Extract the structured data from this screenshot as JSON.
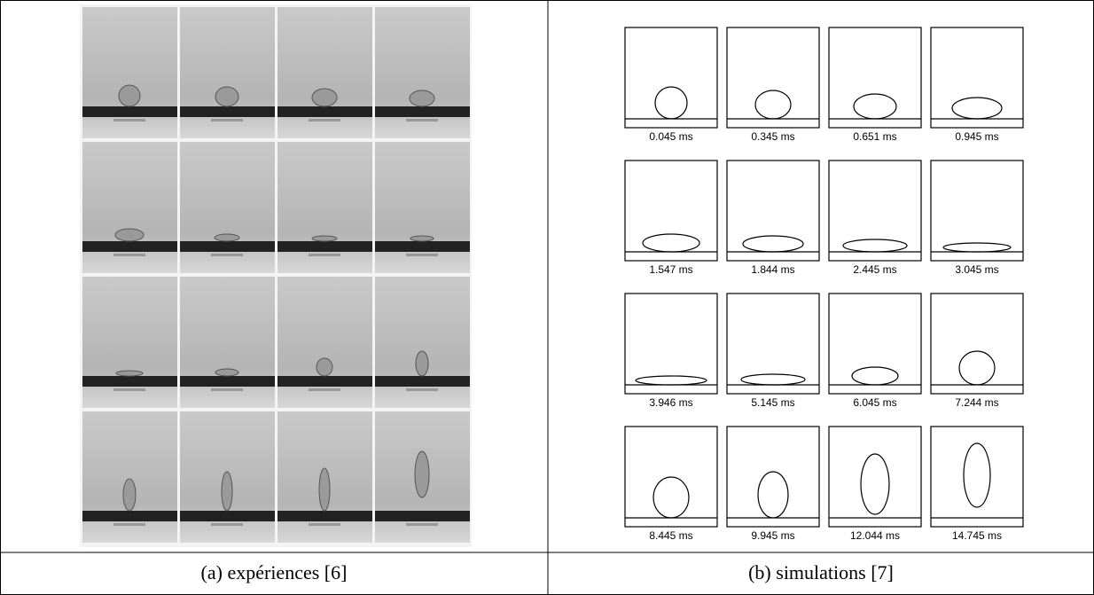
{
  "figure": {
    "left_caption": "(a) expériences [6]",
    "right_caption": "(b) simulations [7]",
    "simulation_labels": [
      "0.045 ms",
      "0.345 ms",
      "0.651 ms",
      "0.945 ms",
      "1.547 ms",
      "1.844 ms",
      "2.445 ms",
      "3.045 ms",
      "3.946 ms",
      "5.145 ms",
      "6.045 ms",
      "7.244 ms",
      "8.445 ms",
      "9.945 ms",
      "12.044 ms",
      "14.745 ms"
    ]
  }
}
